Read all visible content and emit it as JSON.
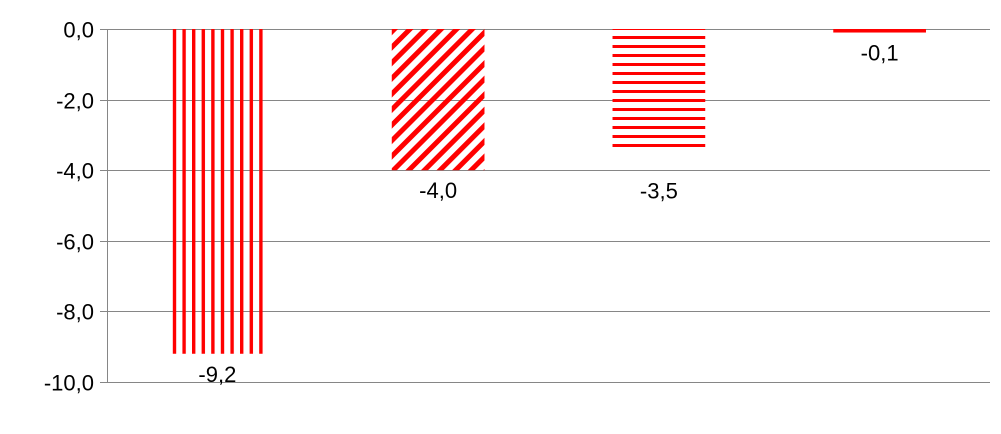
{
  "chart_data": {
    "type": "bar",
    "categories": [
      "",
      "",
      "",
      ""
    ],
    "values": [
      -9.2,
      -4.0,
      -3.5,
      -0.1
    ],
    "data_labels": [
      "-9,2",
      "-4,0",
      "-3,5",
      "-0,1"
    ],
    "patterns": [
      "vertical-lines",
      "diagonal-lines",
      "horizontal-lines",
      "solid"
    ],
    "ylim": [
      -10,
      0
    ],
    "yticks": [
      0,
      -2,
      -4,
      -6,
      -8,
      -10
    ],
    "ytick_labels": [
      "0,0",
      "-2,0",
      "-4,0",
      "-6,0",
      "-8,0",
      "-10,0"
    ],
    "grid": true,
    "title": "",
    "xlabel": "",
    "ylabel": ""
  },
  "colors": {
    "bar": "#ff0000",
    "grid": "#868686",
    "axis": "#868686",
    "text": "#000000"
  }
}
